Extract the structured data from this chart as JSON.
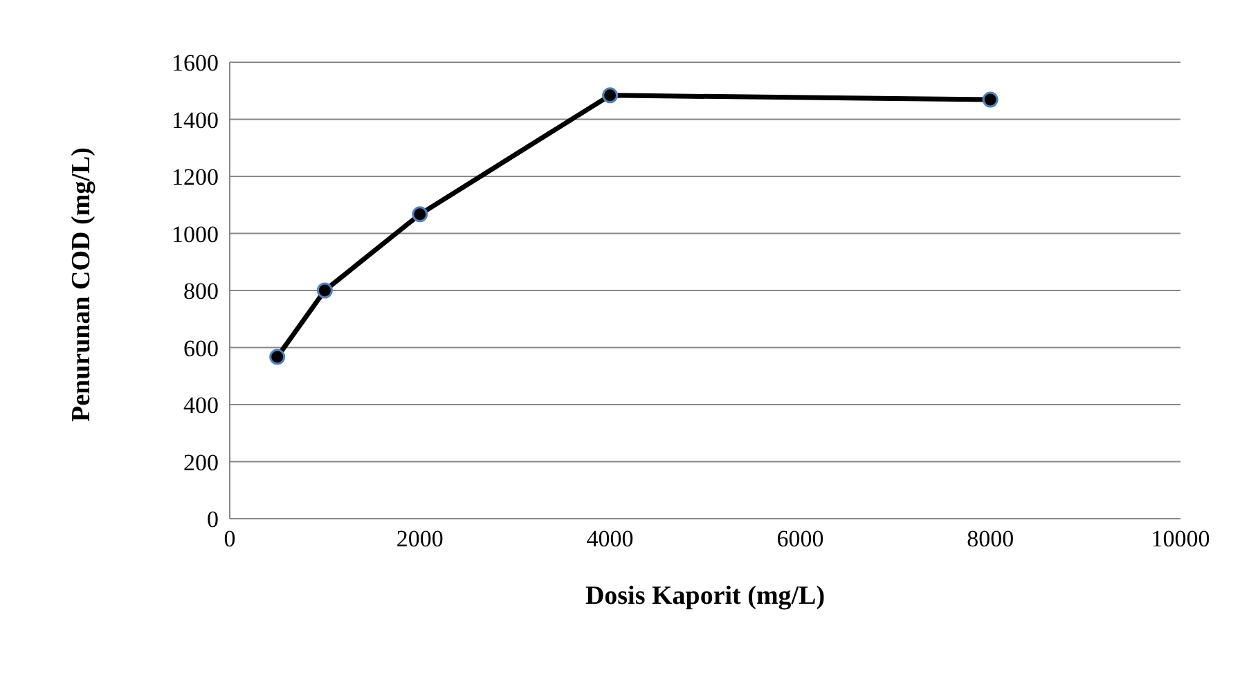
{
  "chart_data": {
    "type": "line",
    "xlabel": "Dosis Kaporit (mg/L)",
    "ylabel": "Penurunan COD (mg/L)",
    "x": [
      500,
      1000,
      2000,
      4000,
      8000
    ],
    "series": [
      {
        "color": "#000000",
        "values": [
          567,
          800,
          1067,
          1484,
          1469
        ]
      }
    ],
    "xlim": [
      0,
      10000
    ],
    "xticks": [
      0,
      2000,
      4000,
      6000,
      8000,
      10000
    ],
    "ylim": [
      0,
      1600
    ],
    "yticks": [
      0,
      200,
      400,
      600,
      800,
      1000,
      1200,
      1400,
      1600
    ],
    "grid": "y",
    "marker": "circle",
    "line_style": "solid",
    "legend": false
  }
}
